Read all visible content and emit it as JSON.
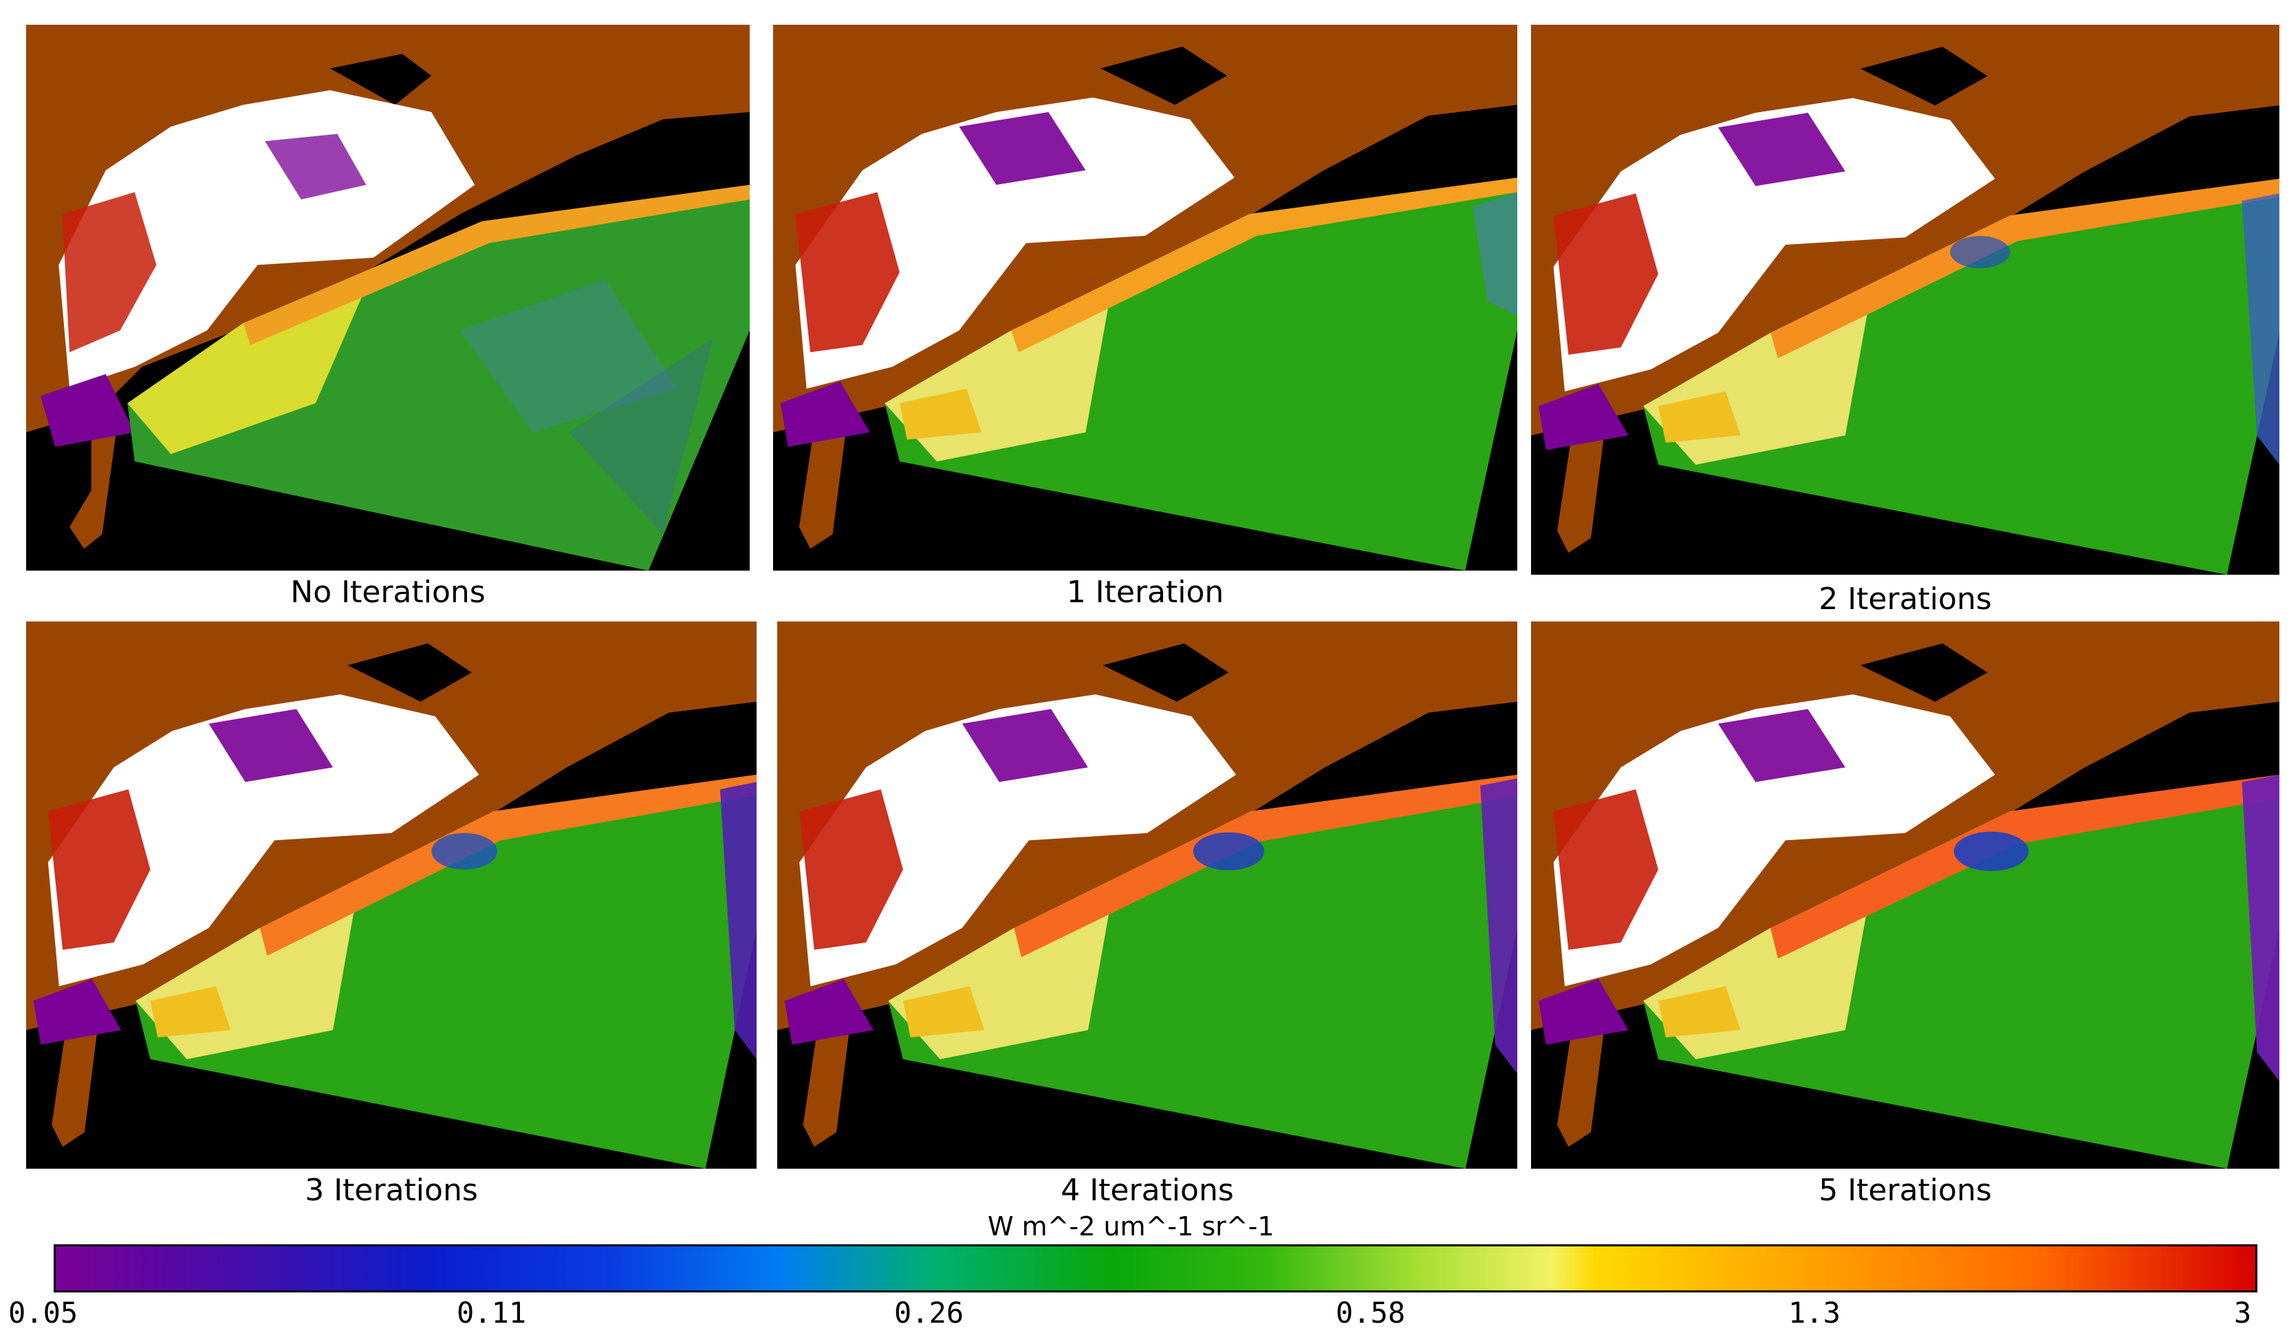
{
  "figure": {
    "panels": [
      {
        "caption": "No Iterations"
      },
      {
        "caption": "1 Iteration"
      },
      {
        "caption": "2 Iterations"
      },
      {
        "caption": "3 Iterations"
      },
      {
        "caption": "4 Iterations"
      },
      {
        "caption": "5 Iterations"
      }
    ],
    "colorbar": {
      "units": "W m^-2 um^-1 sr^-1",
      "ticks": [
        "0.05",
        "0.11",
        "0.26",
        "0.58",
        "1.3",
        "3"
      ],
      "colors": [
        "#7a0096",
        "#0a1ecc",
        "#007df2",
        "#0aa70a",
        "#a6df34",
        "#ffd800",
        "#ff6a00",
        "#d80000"
      ]
    },
    "map_colors": {
      "land": "#9b4503",
      "nodata": "#000000",
      "cloud": "#ffffff",
      "low": "#7a0096",
      "high": "#d80000",
      "water": "#34b80f"
    }
  }
}
